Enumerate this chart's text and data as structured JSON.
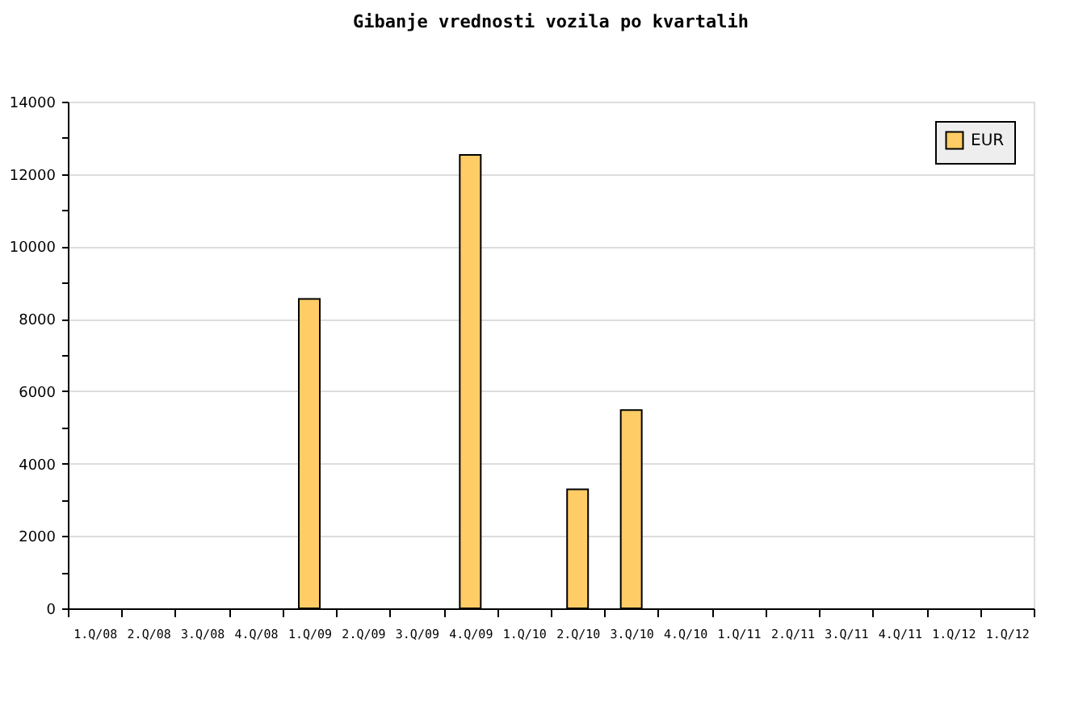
{
  "chart_data": {
    "type": "bar",
    "title": "Gibanje vrednosti vozila po kvartalih",
    "categories": [
      "1.Q/08",
      "2.Q/08",
      "3.Q/08",
      "4.Q/08",
      "1.Q/09",
      "2.Q/09",
      "3.Q/09",
      "4.Q/09",
      "1.Q/10",
      "2.Q/10",
      "3.Q/10",
      "4.Q/10",
      "1.Q/11",
      "2.Q/11",
      "3.Q/11",
      "4.Q/11",
      "1.Q/12",
      "1.Q/12"
    ],
    "series": [
      {
        "name": "EUR",
        "color": "#ffcc66",
        "values": [
          null,
          null,
          null,
          null,
          8550,
          null,
          null,
          12530,
          null,
          3290,
          5480,
          null,
          null,
          null,
          null,
          null,
          null,
          null
        ]
      }
    ],
    "ylim": [
      0,
      14000
    ],
    "yticks": [
      0,
      {
        "value": 1000,
        "label": null
      },
      2000,
      {
        "value": 3000,
        "label": null
      },
      4000,
      {
        "value": 5000,
        "label": null
      },
      6000,
      {
        "value": 7000,
        "label": null
      },
      8000,
      {
        "value": 9000,
        "label": null
      },
      10000,
      {
        "value": 11000,
        "label": null
      },
      12000,
      {
        "value": 13000,
        "label": null
      },
      14000
    ],
    "grid": "y",
    "legend": "top right"
  }
}
